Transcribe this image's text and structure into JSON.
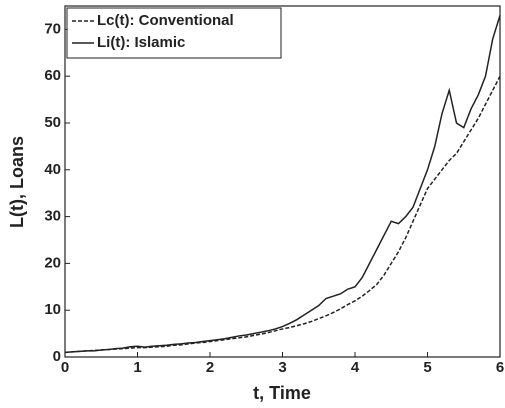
{
  "chart_data": {
    "type": "line",
    "x_label": "t, Time",
    "y_label": "L(t), Loans",
    "x": [
      0,
      0.1,
      0.2,
      0.3,
      0.4,
      0.5,
      0.6,
      0.7,
      0.8,
      0.9,
      1,
      1.1,
      1.2,
      1.3,
      1.4,
      1.5,
      1.6,
      1.7,
      1.8,
      1.9,
      2,
      2.1,
      2.2,
      2.3,
      2.4,
      2.5,
      2.6,
      2.7,
      2.8,
      2.9,
      3,
      3.1,
      3.2,
      3.3,
      3.4,
      3.5,
      3.6,
      3.7,
      3.8,
      3.9,
      4,
      4.1,
      4.2,
      4.3,
      4.4,
      4.5,
      4.6,
      4.7,
      4.8,
      4.9,
      5,
      5.1,
      5.2,
      5.3,
      5.4,
      5.5,
      5.6,
      5.7,
      5.8,
      5.9,
      6
    ],
    "series": [
      {
        "name": "Lc(t): Conventional",
        "color": "#222222",
        "dash": true,
        "values": [
          1.0,
          1.1,
          1.2,
          1.3,
          1.4,
          1.5,
          1.6,
          1.7,
          1.8,
          1.9,
          2.0,
          2.0,
          2.1,
          2.2,
          2.3,
          2.5,
          2.6,
          2.8,
          3.0,
          3.1,
          3.3,
          3.5,
          3.7,
          3.9,
          4.1,
          4.3,
          4.6,
          4.9,
          5.2,
          5.6,
          6.0,
          6.3,
          6.7,
          7.1,
          7.6,
          8.2,
          8.8,
          9.5,
          10.3,
          11.2,
          12.0,
          13.0,
          14.2,
          15.5,
          17.5,
          20.0,
          22.5,
          25.5,
          29.0,
          32.5,
          36.0,
          38.0,
          40.0,
          42.0,
          43.5,
          46.0,
          48.5,
          51.0,
          54.0,
          57.0,
          60.0
        ]
      },
      {
        "name": "Li(t): Islamic",
        "color": "#222222",
        "dash": false,
        "values": [
          1.0,
          1.1,
          1.2,
          1.3,
          1.3,
          1.5,
          1.6,
          1.8,
          1.9,
          2.2,
          2.3,
          2.1,
          2.3,
          2.4,
          2.5,
          2.7,
          2.8,
          3.0,
          3.1,
          3.3,
          3.5,
          3.7,
          3.9,
          4.2,
          4.5,
          4.7,
          5.0,
          5.3,
          5.6,
          6.0,
          6.5,
          7.2,
          8.0,
          9.0,
          10.0,
          11.0,
          12.5,
          13.0,
          13.5,
          14.5,
          15.0,
          17.0,
          20.0,
          23.0,
          26.0,
          29.0,
          28.5,
          30.0,
          32.0,
          36.0,
          40.0,
          45.0,
          52.0,
          57.0,
          50.0,
          49.0,
          53.0,
          56.0,
          60.0,
          68.0,
          73.0
        ]
      }
    ],
    "xlim": [
      0,
      6
    ],
    "xticks": [
      0,
      1,
      2,
      3,
      4,
      5,
      6
    ],
    "ylim": [
      0,
      75
    ],
    "yticks": [
      0,
      10,
      20,
      30,
      40,
      50,
      60,
      70
    ],
    "legend": "upper left"
  }
}
